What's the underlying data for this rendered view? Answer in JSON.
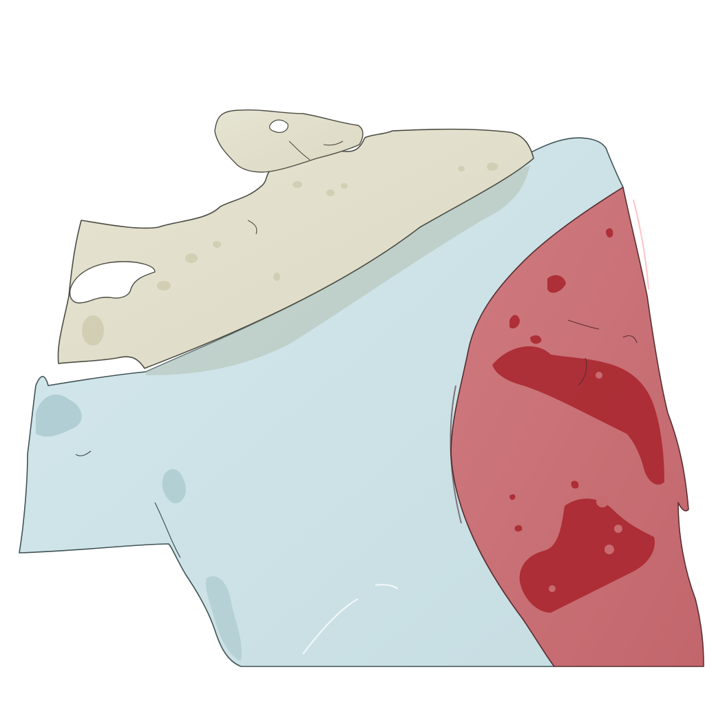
{
  "scene": {
    "background": "#ffffff",
    "structures": [
      {
        "name": "light-blue-volume",
        "color": "#cde3e7",
        "edge": "#3f5255"
      },
      {
        "name": "beige-volume",
        "color": "#e3e1cc",
        "edge": "#4b4b42"
      },
      {
        "name": "red-volume",
        "color": "#c86b70",
        "dark": "#a8232c",
        "edge": "#5a2d31"
      }
    ]
  }
}
